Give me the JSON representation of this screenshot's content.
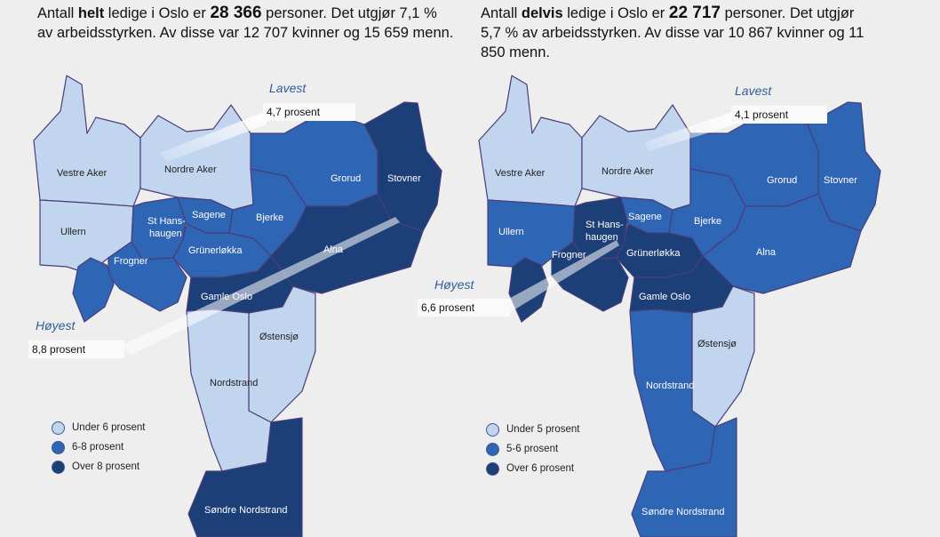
{
  "colors": {
    "light": "#c2d5ef",
    "mid": "#2e65b4",
    "dark": "#1c3f77"
  },
  "left": {
    "heading": {
      "t1": "Antall ",
      "t2": "helt",
      "t3": " ledige i Oslo er ",
      "t4": "28 366",
      "t5": " personer. Det utgjør 7,1 % av arbeidsstyrken. Av disse var 12 707 kvinner og 15 659 menn."
    },
    "lowest": {
      "title": "Lavest",
      "value": "4,7 prosent"
    },
    "highest": {
      "title": "Høyest",
      "value": "8,8 prosent"
    },
    "districts": {
      "vestre_aker": "Vestre Aker",
      "nordre_aker": "Nordre Aker",
      "ullern": "Ullern",
      "frogner": "Frogner",
      "st_hans_1": "St Hans-",
      "st_hans_2": "haugen",
      "sagene": "Sagene",
      "grunerlokka": "Grünerløkka",
      "bjerke": "Bjerke",
      "grorud": "Grorud",
      "stovner": "Stovner",
      "alna": "Alna",
      "gamle_oslo": "Gamle Oslo",
      "ostensjo": "Østensjø",
      "nordstrand": "Nordstrand",
      "sondre_nordstrand": "Søndre Nordstrand"
    },
    "legend": [
      "Under 6 prosent",
      "6-8 prosent",
      "Over 8  prosent"
    ]
  },
  "right": {
    "heading": {
      "t1": "Antall ",
      "t2": "delvis",
      "t3": " ledige i Oslo er ",
      "t4": "22 717",
      "t5": " personer. Det utgjør 5,7 % av arbeidsstyrken. Av disse var 10 867 kvinner og 11 850 menn."
    },
    "lowest": {
      "title": "Lavest",
      "value": "4,1 prosent"
    },
    "highest": {
      "title": "Høyest",
      "value": "6,6 prosent"
    },
    "districts": {
      "vestre_aker": "Vestre Aker",
      "nordre_aker": "Nordre Aker",
      "ullern": "Ullern",
      "frogner": "Frogner",
      "st_hans_1": "St Hans-",
      "st_hans_2": "haugen",
      "sagene": "Sagene",
      "grunerlokka": "Grünerløkka",
      "bjerke": "Bjerke",
      "grorud": "Grorud",
      "stovner": "Stovner",
      "alna": "Alna",
      "gamle_oslo": "Gamle Oslo",
      "ostensjo": "Østensjø",
      "nordstrand": "Nordstrand",
      "sondre_nordstrand": "Søndre Nordstrand"
    },
    "legend": [
      "Under 5 prosent",
      "5-6 prosent",
      "Over 6  prosent"
    ]
  }
}
